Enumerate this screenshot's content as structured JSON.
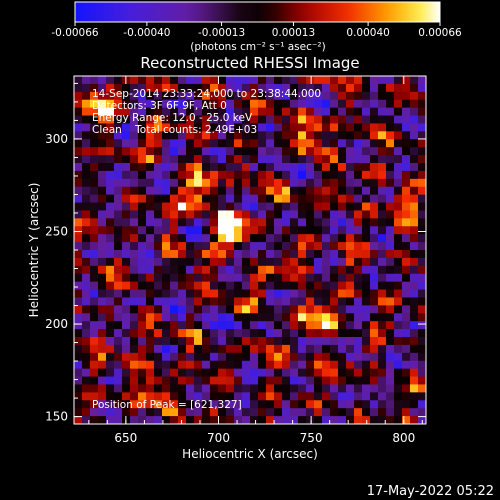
{
  "chart_data": {
    "type": "heatmap",
    "title": "Reconstructed RHESSI Image",
    "xlabel": "Heliocentric X (arcsec)",
    "ylabel": "Heliocentric Y (arcsec)",
    "xlim": [
      622,
      812
    ],
    "ylim": [
      146,
      334
    ],
    "x_ticks": [
      650,
      700,
      750,
      800
    ],
    "y_ticks": [
      150,
      200,
      250,
      300
    ],
    "colorbar": {
      "min": -0.00066,
      "max": 0.00066,
      "ticks": [
        "-0.00066",
        "-0.00040",
        "-0.00013",
        "0.00013",
        "0.00040",
        "0.00066"
      ],
      "tick_values": [
        -0.00066,
        -0.0004,
        -0.00013,
        0.00013,
        0.0004,
        0.00066
      ],
      "unit_label": "(photons cm⁻² s⁻¹ asec⁻²)",
      "colormap": "blue-violet-red-orange-yellow-white"
    },
    "info_lines": [
      "14-Sep-2014 23:33:24.000 to 23:38:44.000",
      "Detectors: 3F 6F 9F, Att 0",
      "Energy Range: 12.0 - 25.0 keV",
      "Clean    Total counts: 2.49E+03"
    ],
    "peak_label": "Position of Peak = [621,327]",
    "peak_position": [
      621,
      327
    ],
    "sources": [
      {
        "x": 708,
        "y": 250,
        "amp": 1.0
      },
      {
        "x": 752,
        "y": 206,
        "amp": 0.82
      },
      {
        "x": 665,
        "y": 164,
        "amp": 0.7
      },
      {
        "x": 690,
        "y": 270,
        "amp": 0.65
      },
      {
        "x": 750,
        "y": 300,
        "amp": 0.6
      },
      {
        "x": 635,
        "y": 320,
        "amp": 0.75
      },
      {
        "x": 800,
        "y": 265,
        "amp": 0.55
      }
    ],
    "grid": false
  },
  "footer": {
    "timestamp": "17-May-2022 05:22"
  }
}
